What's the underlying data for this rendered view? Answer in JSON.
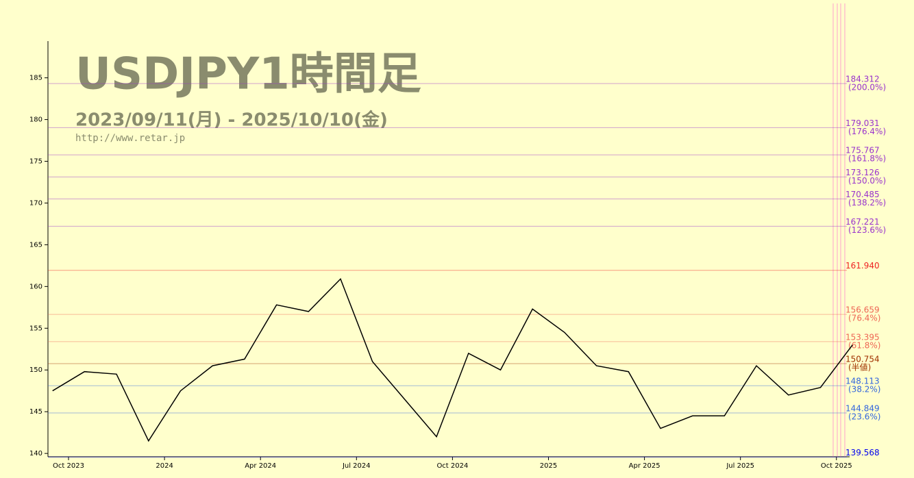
{
  "chart_data": {
    "type": "line",
    "title": "USDJPY1時間足",
    "subtitle": "2023/09/11(月) - 2025/10/10(金)",
    "url": "http://www.retar.jp",
    "x": [
      "Sep 2023",
      "Oct 2023",
      "Nov 2023",
      "Dec 2023",
      "Jan 2024",
      "Feb 2024",
      "Mar 2024",
      "Apr 2024",
      "May 2024",
      "Jun 2024",
      "Jul 2024",
      "Aug 2024",
      "Sep 2024",
      "Oct 2024",
      "Nov 2024",
      "Dec 2024",
      "Jan 2025",
      "Feb 2025",
      "Mar 2025",
      "Apr 2025",
      "May 2025",
      "Jun 2025",
      "Jul 2025",
      "Aug 2025",
      "Sep 2025",
      "Oct 2025"
    ],
    "values": [
      147.5,
      149.8,
      149.5,
      141.5,
      147.5,
      150.5,
      151.3,
      157.8,
      157.0,
      160.9,
      151.0,
      146.5,
      142.0,
      152.0,
      150.0,
      157.3,
      154.5,
      150.5,
      149.8,
      143.0,
      144.5,
      144.5,
      150.5,
      147.0,
      147.9,
      153.0
    ],
    "color": "#000000",
    "xticks": [
      {
        "value": "Oct 2023",
        "label": "Oct 2023"
      },
      {
        "value": "Jan 2024",
        "label": "2024"
      },
      {
        "value": "Apr 2024",
        "label": "Apr 2024"
      },
      {
        "value": "Jul 2024",
        "label": "Jul 2024"
      },
      {
        "value": "Oct 2024",
        "label": "Oct 2024"
      },
      {
        "value": "Jan 2025",
        "label": "2025"
      },
      {
        "value": "Apr 2025",
        "label": "Apr 2025"
      },
      {
        "value": "Jul 2025",
        "label": "Jul 2025"
      },
      {
        "value": "Oct 2025",
        "label": "Oct 2025"
      }
    ],
    "ylim": [
      139.6,
      189.4
    ],
    "yticks": [
      140,
      145,
      150,
      155,
      160,
      165,
      170,
      175,
      180,
      185
    ],
    "levels": [
      {
        "price": 184.312,
        "ratio": "(200.0%)",
        "color": "#9933cc"
      },
      {
        "price": 179.031,
        "ratio": "(176.4%)",
        "color": "#9933cc"
      },
      {
        "price": 175.767,
        "ratio": "(161.8%)",
        "color": "#9933cc"
      },
      {
        "price": 173.126,
        "ratio": "(150.0%)",
        "color": "#9933cc"
      },
      {
        "price": 170.485,
        "ratio": "(138.2%)",
        "color": "#9933cc"
      },
      {
        "price": 167.221,
        "ratio": "(123.6%)",
        "color": "#9933cc"
      },
      {
        "price": {
          "value": 161.94,
          "label": "161.940"
        },
        "color": "#ee2222"
      },
      {
        "price": 156.659,
        "ratio": "(76.4%)",
        "color": "#ee6655"
      },
      {
        "price": 153.395,
        "ratio": "(61.8%)",
        "color": "#ee6655"
      },
      {
        "price": 150.754,
        "ratio": "(半値)",
        "color": "#a03000"
      },
      {
        "price": 148.113,
        "ratio": "(38.2%)",
        "color": "#3366dd"
      },
      {
        "price": 144.849,
        "ratio": "(23.6%)",
        "color": "#3366dd"
      },
      {
        "price": 139.568,
        "color": "#0000ee"
      }
    ]
  }
}
